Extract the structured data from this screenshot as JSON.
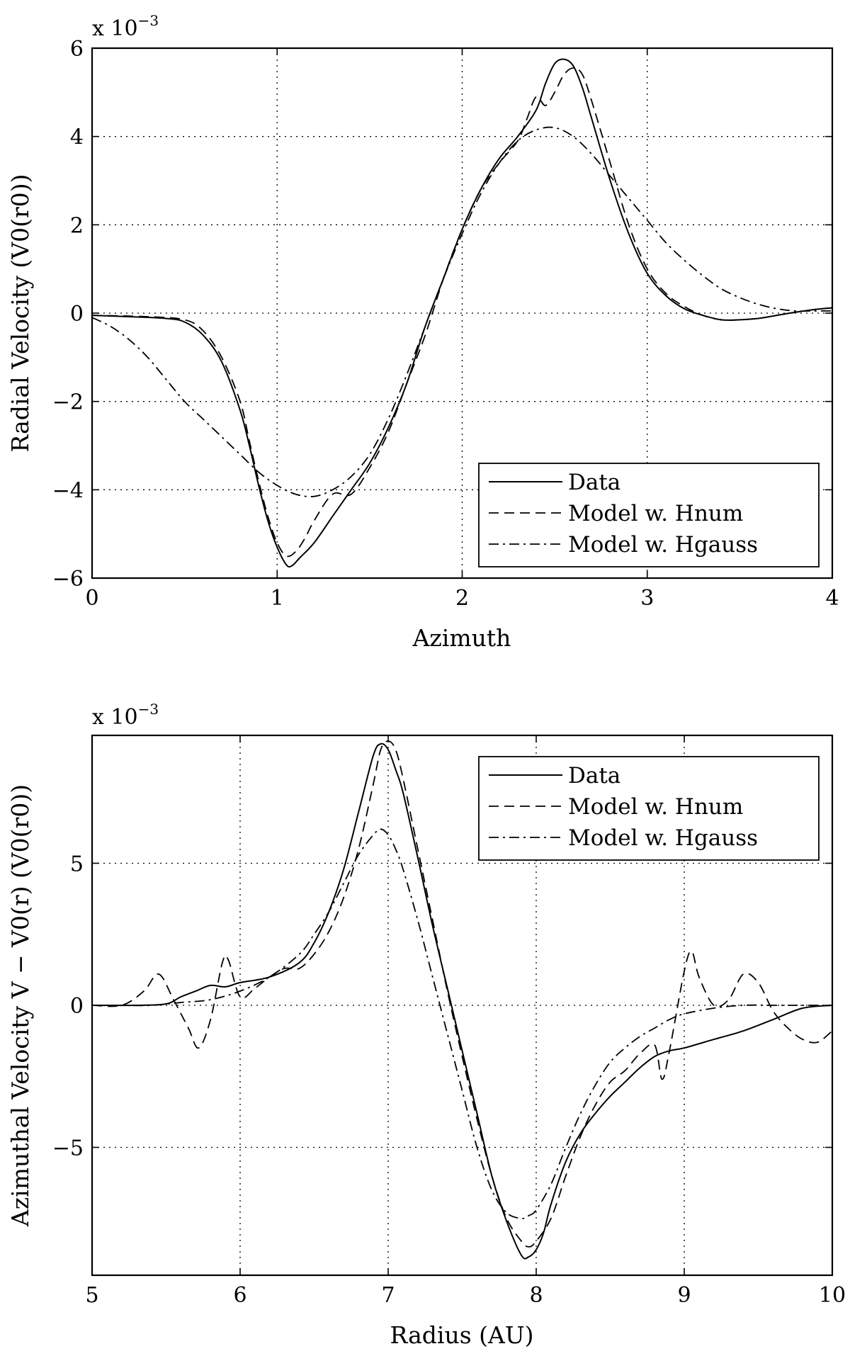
{
  "chart_data": [
    {
      "type": "line",
      "xlabel": "Azimuth",
      "ylabel": "Radial Velocity (V0(r0))",
      "multiplier_base": "x 10",
      "multiplier_exp": "−3",
      "xlim": [
        0,
        4
      ],
      "ylim": [
        -6,
        6
      ],
      "xticks": [
        0,
        1,
        2,
        3,
        4
      ],
      "yticks": [
        -6,
        -4,
        -2,
        0,
        2,
        4,
        6
      ],
      "xtick_labels": [
        "0",
        "1",
        "2",
        "3",
        "4"
      ],
      "ytick_labels": [
        "−6",
        "−4",
        "−2",
        "0",
        "2",
        "4",
        "6"
      ],
      "grid": true,
      "legend_position": "bottom-right",
      "series": [
        {
          "name": "Data",
          "style": "solid",
          "x": [
            0,
            0.2,
            0.4,
            0.5,
            0.6,
            0.7,
            0.8,
            0.85,
            0.9,
            0.95,
            1.0,
            1.05,
            1.08,
            1.12,
            1.2,
            1.3,
            1.4,
            1.5,
            1.6,
            1.7,
            1.8,
            1.9,
            2.0,
            2.1,
            2.2,
            2.3,
            2.4,
            2.45,
            2.5,
            2.55,
            2.6,
            2.65,
            2.7,
            2.8,
            2.9,
            3.0,
            3.1,
            3.2,
            3.3,
            3.4,
            3.5,
            3.6,
            3.7,
            3.8,
            3.9,
            4.0
          ],
          "y": [
            -0.05,
            -0.08,
            -0.12,
            -0.2,
            -0.5,
            -1.1,
            -2.2,
            -3.0,
            -3.9,
            -4.7,
            -5.3,
            -5.7,
            -5.72,
            -5.55,
            -5.2,
            -4.6,
            -4.0,
            -3.4,
            -2.6,
            -1.6,
            -0.3,
            0.8,
            1.9,
            2.8,
            3.5,
            4.0,
            4.6,
            5.2,
            5.65,
            5.75,
            5.6,
            5.1,
            4.4,
            3.0,
            1.8,
            0.9,
            0.4,
            0.1,
            -0.05,
            -0.15,
            -0.15,
            -0.12,
            -0.05,
            0.02,
            0.08,
            0.12
          ]
        },
        {
          "name": "Model w. Hnum",
          "style": "dashed",
          "x": [
            0,
            0.3,
            0.5,
            0.6,
            0.7,
            0.8,
            0.85,
            0.9,
            0.95,
            1.0,
            1.05,
            1.1,
            1.15,
            1.2,
            1.3,
            1.4,
            1.5,
            1.6,
            1.7,
            1.8,
            1.9,
            2.0,
            2.1,
            2.2,
            2.3,
            2.35,
            2.4,
            2.45,
            2.5,
            2.55,
            2.6,
            2.65,
            2.7,
            2.8,
            2.9,
            3.0,
            3.1,
            3.2,
            3.3,
            3.4,
            3.5,
            3.6,
            3.7,
            3.8,
            3.9,
            4.0
          ],
          "y": [
            -0.05,
            -0.08,
            -0.15,
            -0.4,
            -1.0,
            -2.0,
            -2.9,
            -3.8,
            -4.6,
            -5.2,
            -5.5,
            -5.4,
            -5.1,
            -4.7,
            -4.1,
            -4.1,
            -3.5,
            -2.7,
            -1.6,
            -0.5,
            0.8,
            1.9,
            2.8,
            3.4,
            3.9,
            4.4,
            4.9,
            4.7,
            5.0,
            5.4,
            5.55,
            5.4,
            4.8,
            3.4,
            2.0,
            1.0,
            0.45,
            0.15,
            -0.05,
            -0.15,
            -0.15,
            -0.12,
            -0.05,
            0.02,
            0.08,
            0.12
          ]
        },
        {
          "name": "Model w. Hgauss",
          "style": "dashdot",
          "x": [
            0,
            0.1,
            0.2,
            0.3,
            0.4,
            0.5,
            0.6,
            0.7,
            0.8,
            0.9,
            1.0,
            1.1,
            1.2,
            1.3,
            1.4,
            1.5,
            1.6,
            1.7,
            1.8,
            1.9,
            2.0,
            2.1,
            2.2,
            2.3,
            2.4,
            2.5,
            2.6,
            2.7,
            2.8,
            2.9,
            3.0,
            3.1,
            3.2,
            3.3,
            3.4,
            3.5,
            3.6,
            3.7,
            3.8,
            3.9,
            4.0
          ],
          "y": [
            -0.1,
            -0.3,
            -0.6,
            -1.0,
            -1.5,
            -2.0,
            -2.4,
            -2.8,
            -3.2,
            -3.6,
            -3.9,
            -4.1,
            -4.15,
            -4.0,
            -3.7,
            -3.2,
            -2.4,
            -1.4,
            -0.3,
            0.8,
            1.8,
            2.7,
            3.4,
            3.9,
            4.15,
            4.2,
            4.0,
            3.6,
            3.1,
            2.6,
            2.1,
            1.6,
            1.2,
            0.85,
            0.55,
            0.35,
            0.2,
            0.1,
            0.05,
            0.05,
            0.05
          ]
        }
      ]
    },
    {
      "type": "line",
      "xlabel": "Radius (AU)",
      "ylabel": "Azimuthal Velocity V − V0(r) (V0(r0))",
      "multiplier_base": "x 10",
      "multiplier_exp": "−3",
      "xlim": [
        5,
        10
      ],
      "ylim": [
        -9.5,
        9.5
      ],
      "xticks": [
        5,
        6,
        7,
        8,
        9,
        10
      ],
      "yticks": [
        -5,
        0,
        5
      ],
      "xtick_labels": [
        "5",
        "6",
        "7",
        "8",
        "9",
        "10"
      ],
      "ytick_labels": [
        "−5",
        "0",
        "5"
      ],
      "grid": true,
      "legend_position": "top-right",
      "series": [
        {
          "name": "Data",
          "style": "solid",
          "x": [
            5.0,
            5.3,
            5.5,
            5.6,
            5.7,
            5.8,
            5.9,
            6.0,
            6.2,
            6.4,
            6.5,
            6.6,
            6.7,
            6.8,
            6.9,
            6.95,
            7.0,
            7.05,
            7.1,
            7.2,
            7.3,
            7.4,
            7.5,
            7.6,
            7.7,
            7.8,
            7.9,
            7.95,
            8.0,
            8.05,
            8.1,
            8.2,
            8.3,
            8.4,
            8.5,
            8.6,
            8.7,
            8.8,
            8.9,
            9.0,
            9.2,
            9.4,
            9.6,
            9.8,
            10.0
          ],
          "y": [
            0.0,
            0.0,
            0.05,
            0.3,
            0.5,
            0.7,
            0.65,
            0.8,
            1.0,
            1.5,
            2.2,
            3.3,
            4.8,
            6.8,
            8.8,
            9.2,
            9.0,
            8.3,
            7.5,
            5.2,
            2.8,
            0.6,
            -1.6,
            -3.8,
            -6.0,
            -7.6,
            -8.8,
            -8.85,
            -8.6,
            -8.0,
            -7.0,
            -5.5,
            -4.5,
            -3.8,
            -3.2,
            -2.7,
            -2.2,
            -1.8,
            -1.6,
            -1.5,
            -1.2,
            -0.9,
            -0.5,
            -0.1,
            0.0
          ]
        },
        {
          "name": "Model w. Hnum",
          "style": "dashed",
          "x": [
            5.0,
            5.2,
            5.35,
            5.45,
            5.55,
            5.65,
            5.72,
            5.8,
            5.88,
            5.92,
            6.0,
            6.1,
            6.2,
            6.3,
            6.4,
            6.5,
            6.6,
            6.7,
            6.8,
            6.9,
            6.95,
            7.0,
            7.05,
            7.1,
            7.2,
            7.3,
            7.4,
            7.5,
            7.6,
            7.7,
            7.8,
            7.9,
            7.95,
            8.0,
            8.1,
            8.2,
            8.3,
            8.4,
            8.5,
            8.6,
            8.7,
            8.8,
            8.85,
            8.9,
            9.0,
            9.05,
            9.1,
            9.2,
            9.3,
            9.4,
            9.5,
            9.6,
            9.7,
            9.8,
            9.9,
            10.0
          ],
          "y": [
            0.0,
            0.0,
            0.5,
            1.1,
            0.2,
            -0.8,
            -1.5,
            -0.5,
            1.5,
            1.6,
            0.3,
            0.6,
            1.0,
            1.3,
            1.3,
            1.8,
            2.6,
            3.8,
            5.5,
            7.8,
            9.0,
            9.3,
            9.0,
            8.0,
            5.5,
            3.0,
            0.5,
            -1.8,
            -4.0,
            -6.0,
            -7.5,
            -8.3,
            -8.5,
            -8.3,
            -7.5,
            -6.0,
            -4.6,
            -3.5,
            -2.7,
            -2.3,
            -1.7,
            -1.4,
            -2.6,
            -1.6,
            1.2,
            1.9,
            1.0,
            0.0,
            0.2,
            1.1,
            0.8,
            -0.2,
            -0.8,
            -1.2,
            -1.3,
            -0.9
          ]
        },
        {
          "name": "Model w. Hgauss",
          "style": "dashdot",
          "x": [
            5.0,
            5.2,
            5.4,
            5.6,
            5.8,
            6.0,
            6.2,
            6.4,
            6.5,
            6.6,
            6.7,
            6.8,
            6.9,
            6.95,
            7.0,
            7.05,
            7.1,
            7.2,
            7.3,
            7.4,
            7.5,
            7.6,
            7.7,
            7.8,
            7.9,
            7.95,
            8.0,
            8.1,
            8.2,
            8.3,
            8.4,
            8.5,
            8.6,
            8.7,
            8.8,
            8.9,
            9.0,
            9.2,
            9.4,
            9.6,
            9.8,
            10.0
          ],
          "y": [
            0.0,
            0.0,
            0.0,
            0.1,
            0.2,
            0.5,
            1.0,
            1.8,
            2.5,
            3.3,
            4.3,
            5.3,
            6.0,
            6.2,
            6.0,
            5.5,
            4.8,
            3.0,
            1.0,
            -1.0,
            -3.0,
            -5.0,
            -6.5,
            -7.3,
            -7.5,
            -7.4,
            -7.2,
            -6.3,
            -5.0,
            -3.8,
            -2.8,
            -2.0,
            -1.5,
            -1.1,
            -0.8,
            -0.5,
            -0.3,
            -0.1,
            0.0,
            0.0,
            0.0,
            0.0
          ]
        }
      ]
    }
  ]
}
